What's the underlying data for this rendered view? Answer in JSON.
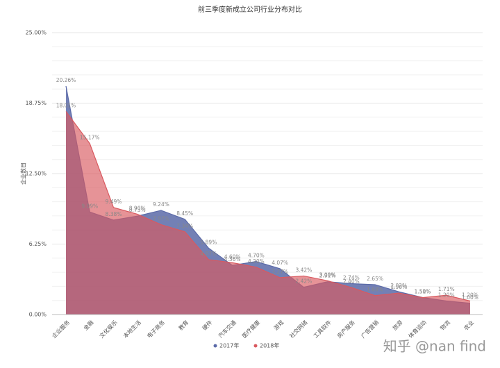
{
  "chart_data": {
    "type": "area",
    "title": "前三季度新成立公司行业分布对比",
    "y_label": "企业数目",
    "categories": [
      "企业服务",
      "金融",
      "文化娱乐",
      "本地生活",
      "电子商务",
      "教育",
      "硬件",
      "汽车交通",
      "医疗健康",
      "游戏",
      "社交网络",
      "工具软件",
      "房产服务",
      "广告营销",
      "旅游",
      "体育运动",
      "物流",
      "农业"
    ],
    "series": [
      {
        "name": "2017年",
        "color": "#5b6aa8",
        "values": [
          20.26,
          9.09,
          8.38,
          8.73,
          9.24,
          8.45,
          5.89,
          4.36,
          4.7,
          4.07,
          2.42,
          2.91,
          2.74,
          2.65,
          2.02,
          1.51,
          1.2,
          1.0
        ],
        "value_labels": [
          "20.26%",
          "9.09%",
          "8.38%",
          "8.73%",
          "9.24%",
          "8.45%",
          "5.89%",
          "4.36%",
          "4.70%",
          "4.07%",
          "2.42%",
          "2.91%",
          "2.74%",
          "2.65%",
          "2.02%",
          "1.51%",
          "1.20%",
          "1.00%"
        ]
      },
      {
        "name": "2018年",
        "color": "#d9595f",
        "values": [
          18.01,
          15.17,
          9.49,
          8.9,
          7.97,
          7.34,
          4.87,
          4.6,
          4.2,
          3.27,
          3.42,
          3.0,
          2.4,
          1.68,
          1.9,
          1.5,
          1.71,
          1.2
        ],
        "value_labels": [
          "18.01%",
          "15.17%",
          "9.49%",
          "8.90%",
          "7.97%",
          "7.34%",
          "4.87%",
          "4.60%",
          "4.20%",
          "3.27%",
          "3.42%",
          "3.00%",
          "2.40%",
          "1.68%",
          "1.90%",
          "1.50%",
          "1.71%",
          "1.20%"
        ]
      }
    ],
    "ylim": [
      0,
      25
    ],
    "yticks": [
      {
        "value": 0,
        "label": "0.00%"
      },
      {
        "value": 6.25,
        "label": "6.25%"
      },
      {
        "value": 12.5,
        "label": "12.50%"
      },
      {
        "value": 18.75,
        "label": "18.75%"
      },
      {
        "value": 25,
        "label": "25.00%"
      }
    ],
    "grid": true,
    "legend": "bottom",
    "watermark": "知乎 @nan find"
  }
}
